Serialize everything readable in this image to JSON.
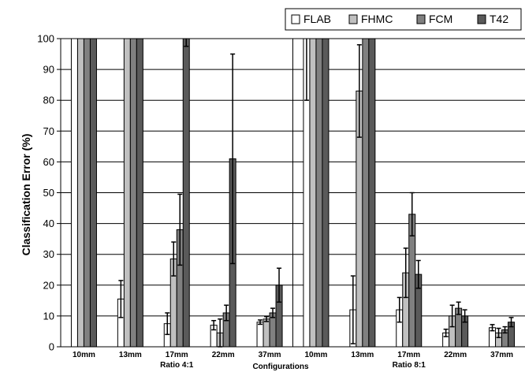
{
  "chart_data": {
    "type": "bar",
    "ylabel": "Classification Error (%)",
    "xlabel": "Configurations",
    "ylim": [
      0,
      100
    ],
    "yticks": [
      "0",
      "10",
      "20",
      "30",
      "40",
      "50",
      "60",
      "70",
      "80",
      "90",
      "100"
    ],
    "grid": true,
    "legend_position": "top-right",
    "categories": [
      "10mm",
      "13mm",
      "17mm",
      "22mm",
      "37mm",
      "10mm",
      "13mm",
      "17mm",
      "22mm",
      "37mm"
    ],
    "groups": [
      {
        "label": "Ratio 4:1",
        "categories": [
          0,
          1,
          2,
          3,
          4
        ]
      },
      {
        "label": "Ratio 8:1",
        "categories": [
          5,
          6,
          7,
          8,
          9
        ]
      }
    ],
    "series": [
      {
        "name": "FLAB",
        "color": "#ffffff",
        "values": [
          100,
          15.5,
          7.5,
          7,
          8,
          100,
          12,
          12,
          4.5,
          6.2
        ],
        "error": [
          0,
          6,
          3.5,
          1.5,
          0.7,
          20,
          11,
          4,
          1.2,
          1
        ]
      },
      {
        "name": "FHMC",
        "color": "#c0c0c0",
        "values": [
          100,
          100,
          28.5,
          4.5,
          9,
          100,
          83,
          24,
          10,
          4.5
        ],
        "error": [
          0,
          0,
          5.5,
          4.5,
          0.8,
          0,
          15,
          8,
          3.5,
          1.5
        ]
      },
      {
        "name": "FCM",
        "color": "#808080",
        "values": [
          100,
          100,
          38,
          11,
          11,
          100,
          100,
          43,
          12.5,
          5.5
        ],
        "error": [
          0,
          0,
          11.5,
          2.5,
          1.5,
          0,
          0,
          7,
          2,
          1
        ]
      },
      {
        "name": "T42",
        "color": "#5a5a5a",
        "values": [
          100,
          100,
          100,
          61,
          20,
          100,
          100,
          23.5,
          10,
          8
        ],
        "error": [
          0,
          0,
          2.5,
          34,
          5.5,
          0,
          0,
          4.5,
          2,
          1.5
        ]
      }
    ]
  }
}
